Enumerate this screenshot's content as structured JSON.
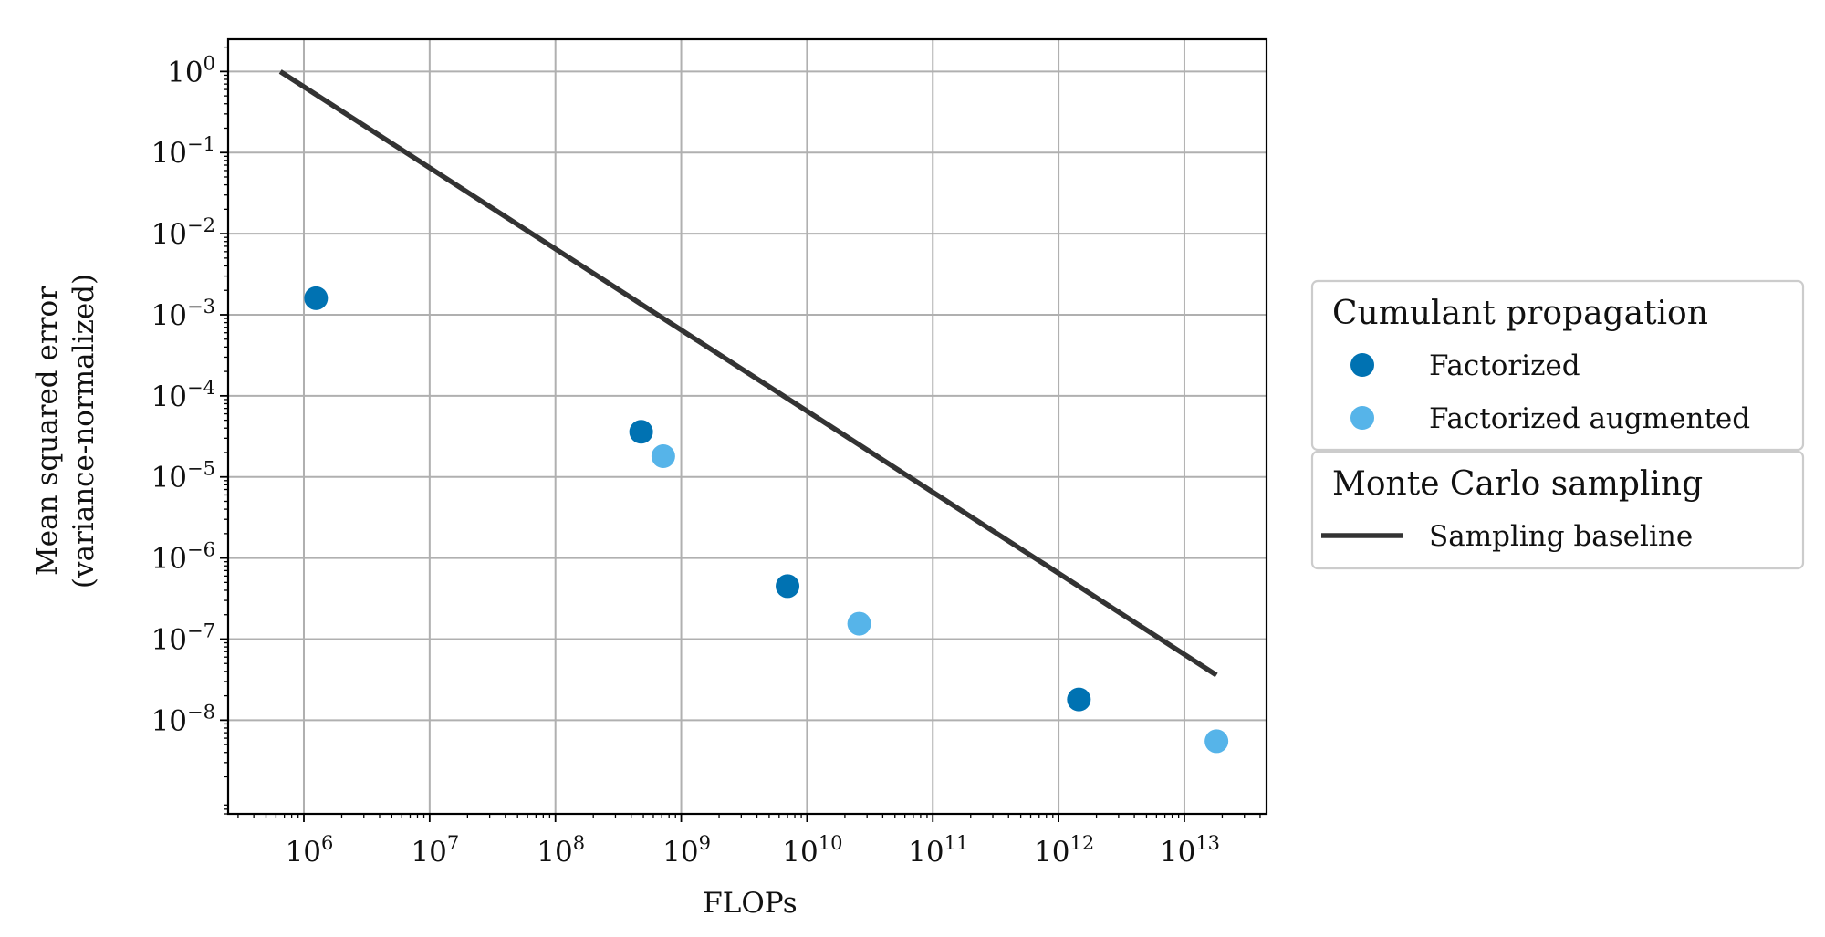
{
  "chart_data": {
    "type": "scatter",
    "xlabel": "FLOPs",
    "ylabel_lines": [
      "Mean squared error",
      "(variance-normalized)"
    ],
    "x_scale": "log",
    "y_scale": "log",
    "xlim": [
      250000,
      45000000000000
    ],
    "ylim": [
      7e-10,
      2.5
    ],
    "x_ticks": [
      {
        "value": 1000000.0,
        "base": "10",
        "exp": "6"
      },
      {
        "value": 10000000.0,
        "base": "10",
        "exp": "7"
      },
      {
        "value": 100000000.0,
        "base": "10",
        "exp": "8"
      },
      {
        "value": 1000000000.0,
        "base": "10",
        "exp": "9"
      },
      {
        "value": 10000000000.0,
        "base": "10",
        "exp": "10"
      },
      {
        "value": 100000000000.0,
        "base": "10",
        "exp": "11"
      },
      {
        "value": 1000000000000.0,
        "base": "10",
        "exp": "12"
      },
      {
        "value": 10000000000000.0,
        "base": "10",
        "exp": "13"
      }
    ],
    "y_ticks": [
      {
        "value": 1,
        "base": "10",
        "exp": "0"
      },
      {
        "value": 0.1,
        "base": "10",
        "exp": "−1"
      },
      {
        "value": 0.01,
        "base": "10",
        "exp": "−2"
      },
      {
        "value": 0.001,
        "base": "10",
        "exp": "−3"
      },
      {
        "value": 0.0001,
        "base": "10",
        "exp": "−4"
      },
      {
        "value": 1e-05,
        "base": "10",
        "exp": "−5"
      },
      {
        "value": 1e-06,
        "base": "10",
        "exp": "−6"
      },
      {
        "value": 1e-07,
        "base": "10",
        "exp": "−7"
      },
      {
        "value": 1e-08,
        "base": "10",
        "exp": "−8"
      }
    ],
    "grid": true,
    "legend_position": "right",
    "series": [
      {
        "name": "Factorized",
        "group": "Cumulant propagation",
        "kind": "scatter",
        "color": "#0072b2",
        "points": [
          {
            "x": 1250000.0,
            "y": 0.0016
          },
          {
            "x": 480000000.0,
            "y": 3.6e-05
          },
          {
            "x": 7000000000.0,
            "y": 4.5e-07
          },
          {
            "x": 1450000000000.0,
            "y": 1.8e-08
          }
        ]
      },
      {
        "name": "Factorized augmented",
        "group": "Cumulant propagation",
        "kind": "scatter",
        "color": "#56b4e9",
        "points": [
          {
            "x": 720000000.0,
            "y": 1.8e-05
          },
          {
            "x": 26000000000.0,
            "y": 1.55e-07
          },
          {
            "x": 18000000000000.0,
            "y": 5.5e-09
          }
        ]
      },
      {
        "name": "Sampling baseline",
        "group": "Monte Carlo sampling",
        "kind": "line",
        "color": "#333333",
        "points": [
          {
            "x": 650000.0,
            "y": 1.0
          },
          {
            "x": 18000000000000.0,
            "y": 3.6e-08
          }
        ]
      }
    ],
    "legend_groups": [
      {
        "title": "Cumulant propagation",
        "entries": [
          "Factorized",
          "Factorized augmented"
        ]
      },
      {
        "title": "Monte Carlo sampling",
        "entries": [
          "Sampling baseline"
        ]
      }
    ]
  }
}
